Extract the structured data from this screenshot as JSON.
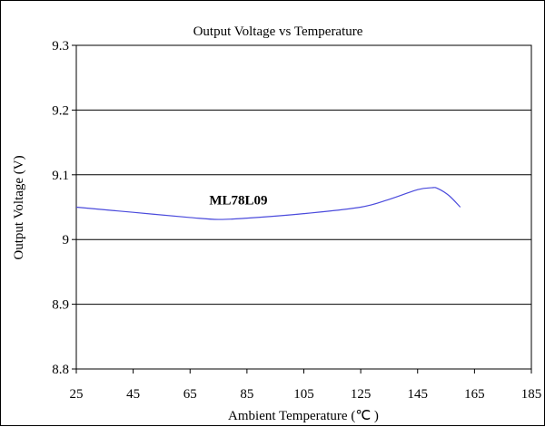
{
  "chart_data": {
    "type": "line",
    "title": "Output Voltage vs Temperature",
    "xlabel": "Ambient Temperature (℃ )",
    "ylabel": "Output Voltage (V)",
    "xlim": [
      25,
      185
    ],
    "ylim": [
      8.8,
      9.3
    ],
    "xticks": [
      25,
      45,
      65,
      85,
      105,
      125,
      145,
      165,
      185
    ],
    "yticks": [
      8.8,
      8.9,
      9,
      9.1,
      9.2,
      9.3
    ],
    "ytick_labels": [
      "8.8",
      "8.9",
      "9",
      "9.1",
      "9.2",
      "9.3"
    ],
    "grid": "horizontal",
    "annotations": [
      {
        "text": "ML78L09",
        "x": 82,
        "y": 9.054
      }
    ],
    "series": [
      {
        "name": "ML78L09",
        "color": "#4a4adc",
        "x": [
          25,
          45,
          65,
          75,
          85,
          105,
          125,
          135,
          145,
          150,
          152,
          156,
          160
        ],
        "y": [
          9.05,
          9.042,
          9.034,
          9.031,
          9.033,
          9.04,
          9.05,
          9.062,
          9.077,
          9.08,
          9.079,
          9.068,
          9.05
        ]
      }
    ]
  }
}
